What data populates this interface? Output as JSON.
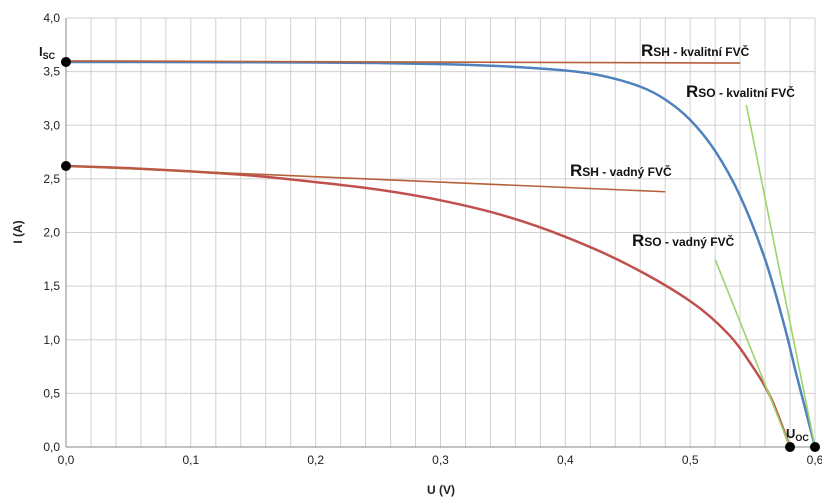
{
  "chart_data": {
    "type": "line",
    "xlabel": "U (V)",
    "ylabel": "I (A)",
    "xlim": [
      0,
      0.6
    ],
    "ylim": [
      0,
      4.0
    ],
    "x_ticks": [
      "0,0",
      "0,1",
      "0,2",
      "0,3",
      "0,4",
      "0,5",
      "0,6"
    ],
    "y_ticks": [
      "0,0",
      "0,5",
      "1,0",
      "1,5",
      "2,0",
      "2,5",
      "3,0",
      "3,5",
      "4,0"
    ],
    "grid": true,
    "series": [
      {
        "color": "#4f81bd",
        "points": [
          [
            0,
            3.59
          ],
          [
            0.1,
            3.589
          ],
          [
            0.2,
            3.585
          ],
          [
            0.25,
            3.58
          ],
          [
            0.3,
            3.57
          ],
          [
            0.35,
            3.55
          ],
          [
            0.4,
            3.51
          ],
          [
            0.43,
            3.46
          ],
          [
            0.46,
            3.36
          ],
          [
            0.48,
            3.24
          ],
          [
            0.5,
            3.05
          ],
          [
            0.52,
            2.76
          ],
          [
            0.54,
            2.34
          ],
          [
            0.56,
            1.75
          ],
          [
            0.575,
            1.15
          ],
          [
            0.585,
            0.68
          ],
          [
            0.593,
            0.32
          ],
          [
            0.6,
            0.0
          ]
        ]
      },
      {
        "color": "#c0504d",
        "points": [
          [
            0,
            2.62
          ],
          [
            0.05,
            2.6
          ],
          [
            0.1,
            2.57
          ],
          [
            0.15,
            2.53
          ],
          [
            0.2,
            2.47
          ],
          [
            0.25,
            2.4
          ],
          [
            0.3,
            2.3
          ],
          [
            0.35,
            2.16
          ],
          [
            0.4,
            1.96
          ],
          [
            0.45,
            1.7
          ],
          [
            0.5,
            1.36
          ],
          [
            0.53,
            1.06
          ],
          [
            0.55,
            0.75
          ],
          [
            0.565,
            0.45
          ],
          [
            0.58,
            0.0
          ]
        ]
      },
      {
        "color": "#b5603a",
        "points": [
          [
            0,
            3.6
          ],
          [
            0.54,
            3.58
          ]
        ]
      },
      {
        "color": "#b5603a",
        "points": [
          [
            0,
            2.62
          ],
          [
            0.48,
            2.38
          ]
        ]
      },
      {
        "color": "#9bd46a",
        "points": [
          [
            0.545,
            3.19
          ],
          [
            0.6,
            0.0
          ]
        ]
      },
      {
        "color": "#9bd46a",
        "points": [
          [
            0.52,
            1.75
          ],
          [
            0.58,
            0.0
          ]
        ]
      }
    ],
    "markers": [
      [
        0,
        3.59
      ],
      [
        0,
        2.62
      ],
      [
        0.58,
        0.0
      ],
      [
        0.6,
        0.0
      ]
    ],
    "annotations": {
      "isc": {
        "main": "I",
        "sub": "SC"
      },
      "uoc": {
        "main": "U",
        "sub": "OC"
      },
      "rsh_good": {
        "sym": "R",
        "sub": "SH",
        "text": " - kvalitní FVČ"
      },
      "rso_good": {
        "sym": "R",
        "sub": "SO",
        "text": " - kvalitní FVČ"
      },
      "rsh_bad": {
        "sym": "R",
        "sub": "SH",
        "text": " - vadný FVČ"
      },
      "rso_bad": {
        "sym": "R",
        "sub": "SO",
        "text": " - vadný FVČ"
      }
    }
  }
}
